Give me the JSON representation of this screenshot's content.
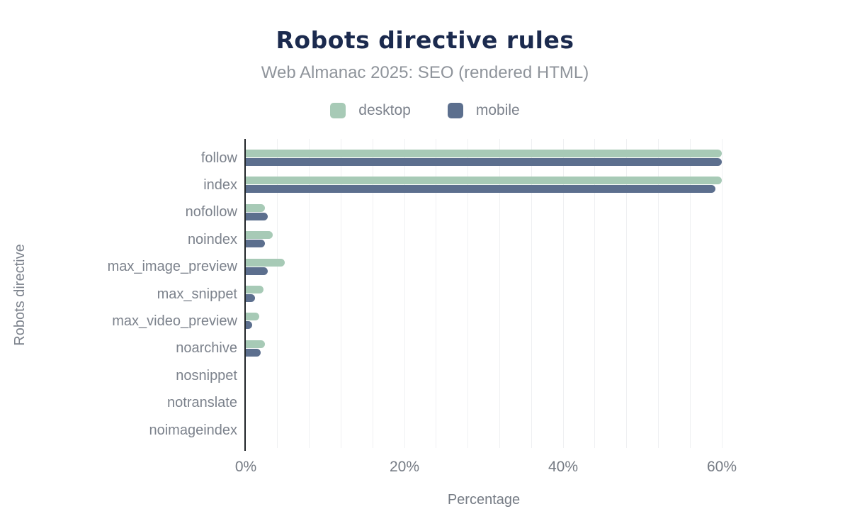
{
  "title": "Robots directive rules",
  "subtitle": "Web Almanac 2025: SEO (rendered HTML)",
  "legend": {
    "items": [
      {
        "label": "desktop",
        "color": "#a7cab6"
      },
      {
        "label": "mobile",
        "color": "#5c6f8e"
      }
    ]
  },
  "chart_data": {
    "type": "bar",
    "orientation": "horizontal",
    "title": "Robots directive rules",
    "subtitle": "Web Almanac 2025: SEO (rendered HTML)",
    "xlabel": "Percentage",
    "ylabel": "Robots directive",
    "xlim": [
      0,
      60
    ],
    "x_ticks": [
      {
        "label": "0%",
        "value": 0
      },
      {
        "label": "20%",
        "value": 20
      },
      {
        "label": "40%",
        "value": 40
      },
      {
        "label": "60%",
        "value": 60
      }
    ],
    "grid": {
      "on": true,
      "step_percent": 4
    },
    "legend_position": "top",
    "categories": [
      "follow",
      "index",
      "nofollow",
      "noindex",
      "max_image_preview",
      "max_snippet",
      "max_video_preview",
      "noarchive",
      "nosnippet",
      "notranslate",
      "noimageindex"
    ],
    "series": [
      {
        "name": "desktop",
        "color": "#a7cab6",
        "values": [
          60.0,
          60.0,
          2.4,
          3.4,
          4.9,
          2.2,
          1.7,
          2.4,
          0.0,
          0.0,
          0.0
        ]
      },
      {
        "name": "mobile",
        "color": "#5c6f8e",
        "values": [
          60.0,
          59.2,
          2.8,
          2.4,
          2.8,
          1.2,
          0.8,
          1.9,
          0.0,
          0.0,
          0.0
        ]
      }
    ]
  },
  "colors": {
    "title": "#1b2a4e",
    "subtitle": "#8f949b",
    "category_label": "#7c828c",
    "tick_label": "#757b84",
    "axis_title": "#757b84",
    "gridline": "#eff0f2",
    "axis_line": "#212529",
    "background": "#ffffff"
  }
}
